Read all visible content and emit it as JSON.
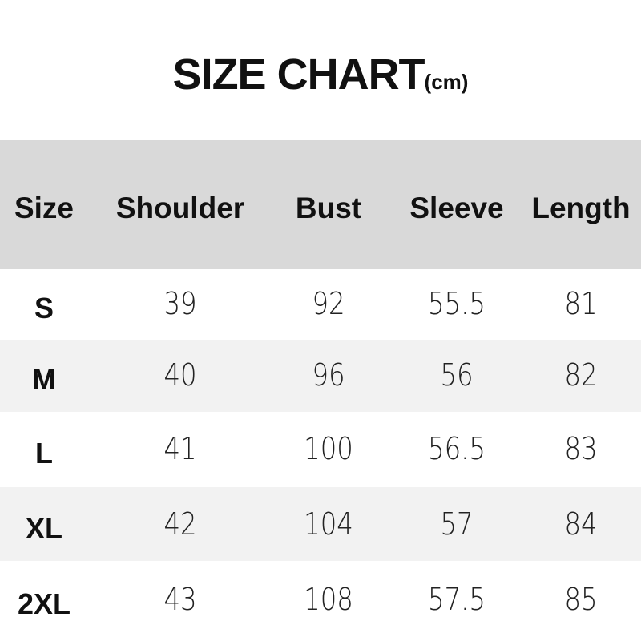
{
  "title": "SIZE CHART",
  "unit": "(cm)",
  "colors": {
    "header_bg": "#d9d9d9",
    "stripe_bg": "#f2f2f2",
    "row_bg": "#ffffff"
  },
  "chart_data": {
    "type": "table",
    "title": "SIZE CHART(cm)",
    "columns": [
      "Size",
      "Shoulder",
      "Bust",
      "Sleeve",
      "Length"
    ],
    "rows": [
      [
        "S",
        "39",
        "92",
        "55.5",
        "81"
      ],
      [
        "M",
        "40",
        "96",
        "56",
        "82"
      ],
      [
        "L",
        "41",
        "100",
        "56.5",
        "83"
      ],
      [
        "XL",
        "42",
        "104",
        "57",
        "84"
      ],
      [
        "2XL",
        "43",
        "108",
        "57.5",
        "85"
      ]
    ]
  }
}
